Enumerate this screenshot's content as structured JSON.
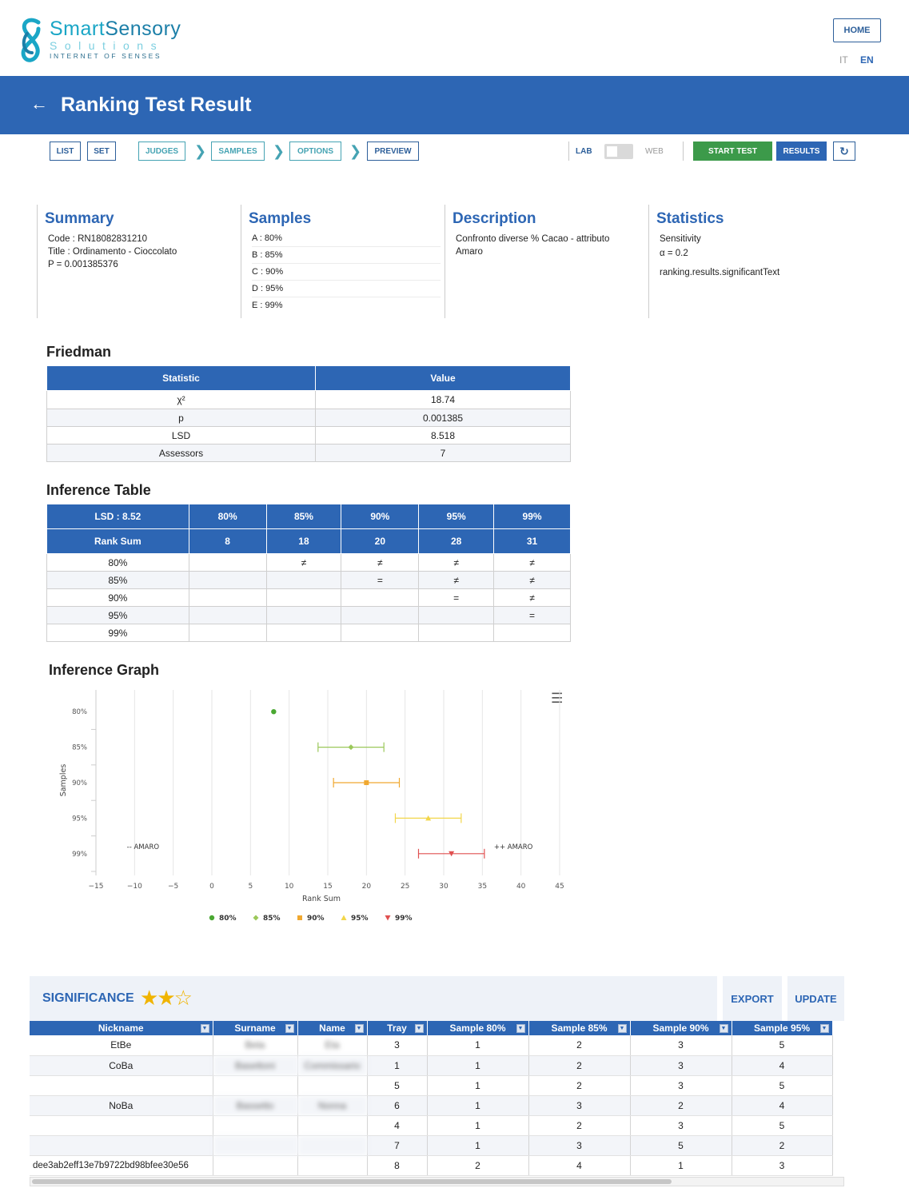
{
  "brand": {
    "smart": "Smart",
    "sensory": "Sensory",
    "solutions": "Solutions",
    "tagline": "INTERNET OF SENSES"
  },
  "header": {
    "home": "HOME",
    "lang_it": "IT",
    "lang_en": "EN"
  },
  "banner": {
    "back_icon": "arrow-left-icon",
    "title": "Ranking Test Result"
  },
  "toolbar": {
    "list": "LIST",
    "set": "SET",
    "judges": "JUDGES",
    "samples": "SAMPLES",
    "options": "OPTIONS",
    "preview": "PREVIEW",
    "lab": "LAB",
    "web": "WEB",
    "start_test": "START TEST",
    "results": "RESULTS",
    "refresh_icon": "refresh-icon"
  },
  "summary": {
    "heading": "Summary",
    "code": "Code : RN18082831210",
    "title": "Title : Ordinamento - Cioccolato",
    "p": "P = 0.001385376"
  },
  "samples": {
    "heading": "Samples",
    "items": [
      "A : 80%",
      "B : 85%",
      "C : 90%",
      "D : 95%",
      "E : 99%"
    ]
  },
  "description": {
    "heading": "Description",
    "text": "Confronto diverse % Cacao - attributo Amaro"
  },
  "statistics": {
    "heading": "Statistics",
    "sensitivity": "Sensitivity",
    "alpha": "α = 0.2",
    "significant": "ranking.results.significantText"
  },
  "friedman": {
    "heading": "Friedman",
    "headers": [
      "Statistic",
      "Value"
    ],
    "rows": [
      [
        "χ²",
        "18.74"
      ],
      [
        "p",
        "0.001385"
      ],
      [
        "LSD",
        "8.518"
      ],
      [
        "Assessors",
        "7"
      ]
    ]
  },
  "inference": {
    "heading": "Inference Table",
    "header1": [
      "LSD : 8.52",
      "80%",
      "85%",
      "90%",
      "95%",
      "99%"
    ],
    "header2": [
      "Rank Sum",
      "8",
      "18",
      "20",
      "28",
      "31"
    ],
    "rows": [
      [
        "80%",
        "",
        "≠",
        "≠",
        "≠",
        "≠"
      ],
      [
        "85%",
        "",
        "",
        "=",
        "≠",
        "≠"
      ],
      [
        "90%",
        "",
        "",
        "",
        "=",
        "≠"
      ],
      [
        "95%",
        "",
        "",
        "",
        "",
        "="
      ],
      [
        "99%",
        "",
        "",
        "",
        "",
        ""
      ]
    ]
  },
  "graph": {
    "heading": "Inference Graph",
    "menu_icon": "hamburger-menu-icon"
  },
  "chart_data": {
    "type": "scatter",
    "xlabel": "Rank Sum",
    "ylabel": "Samples",
    "xlim": [
      -15,
      45
    ],
    "xticks": [
      -15,
      -10,
      -5,
      0,
      5,
      10,
      15,
      20,
      25,
      30,
      35,
      40,
      45
    ],
    "categories": [
      "80%",
      "85%",
      "90%",
      "95%",
      "99%"
    ],
    "series": [
      {
        "name": "80%",
        "color": "#4aa832",
        "marker": "circle",
        "x": 8,
        "low": 8,
        "high": 8
      },
      {
        "name": "85%",
        "color": "#9bc85a",
        "marker": "diamond",
        "x": 18,
        "low": 13.74,
        "high": 22.26
      },
      {
        "name": "90%",
        "color": "#f0a830",
        "marker": "square",
        "x": 20,
        "low": 15.74,
        "high": 24.26
      },
      {
        "name": "95%",
        "color": "#f2d64a",
        "marker": "triangle",
        "x": 28,
        "low": 23.74,
        "high": 32.26
      },
      {
        "name": "99%",
        "color": "#e05050",
        "marker": "triangle-down",
        "x": 31,
        "low": 26.74,
        "high": 35.26
      }
    ],
    "annotations": [
      "-- AMARO",
      "++ AMARO"
    ],
    "legend_position": "bottom"
  },
  "significance": {
    "title": "SIGNIFICANCE",
    "stars_filled": 2,
    "stars_total": 3,
    "export": "EXPORT",
    "update": "UPDATE"
  },
  "judges_table": {
    "columns": [
      "Nickname",
      "Surname",
      "Name",
      "Tray",
      "Sample 80%",
      "Sample 85%",
      "Sample 90%",
      "Sample 95%"
    ],
    "rows": [
      [
        "EtBe",
        "Beta",
        "Eta",
        "3",
        "1",
        "2",
        "3",
        "5"
      ],
      [
        "CoBa",
        "Basettoni",
        "Commissario",
        "1",
        "1",
        "2",
        "3",
        "4"
      ],
      [
        "",
        "",
        "",
        "5",
        "1",
        "2",
        "3",
        "5"
      ],
      [
        "NoBa",
        "Bassetto",
        "Nonna",
        "6",
        "1",
        "3",
        "2",
        "4"
      ],
      [
        "",
        "",
        "",
        "4",
        "1",
        "2",
        "3",
        "5"
      ],
      [
        "",
        "",
        "",
        "7",
        "1",
        "3",
        "5",
        "2"
      ],
      [
        "dee3ab2eff13e7b9722bd98bfee30e56",
        "",
        "",
        "8",
        "2",
        "4",
        "1",
        "3"
      ]
    ]
  }
}
